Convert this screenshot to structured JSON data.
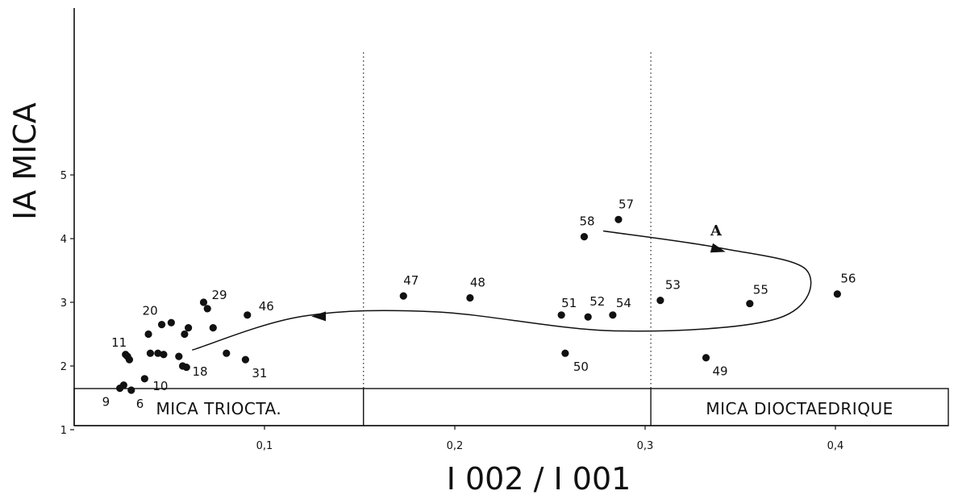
{
  "chart_data": {
    "type": "scatter",
    "xlabel": "I 002 / I 001",
    "ylabel": "IA MICA",
    "xlim": [
      0.0,
      0.46
    ],
    "ylim": [
      0.0,
      6.0
    ],
    "x_ticks": [
      {
        "value": 0.1,
        "label": "0,1"
      },
      {
        "value": 0.2,
        "label": "0,2"
      },
      {
        "value": 0.3,
        "label": "0,3"
      },
      {
        "value": 0.4,
        "label": "0,4"
      }
    ],
    "y_ticks": [
      {
        "value": 1,
        "label": "1"
      },
      {
        "value": 2,
        "label": "2"
      },
      {
        "value": 3,
        "label": "3"
      },
      {
        "value": 4,
        "label": "4"
      },
      {
        "value": 5,
        "label": "5"
      }
    ],
    "divider_lines": [
      0.152,
      0.303
    ],
    "bands": [
      {
        "label": "MICA TRIOCTA.",
        "from": 0.0,
        "to": 0.152
      },
      {
        "label": "",
        "from": 0.152,
        "to": 0.303
      },
      {
        "label": "MICA DIOCTAEDRIQUE",
        "from": 0.303,
        "to": 0.46
      }
    ],
    "points": [
      {
        "label": "9",
        "x": 0.024,
        "y": 1.65
      },
      {
        "label": "",
        "x": 0.026,
        "y": 1.7
      },
      {
        "label": "6",
        "x": 0.03,
        "y": 1.62
      },
      {
        "label": "10",
        "x": 0.037,
        "y": 1.8
      },
      {
        "label": "11",
        "x": 0.028,
        "y": 2.15
      },
      {
        "label": "",
        "x": 0.029,
        "y": 2.1
      },
      {
        "label": "",
        "x": 0.027,
        "y": 2.18
      },
      {
        "label": "",
        "x": 0.04,
        "y": 2.2
      },
      {
        "label": "",
        "x": 0.044,
        "y": 2.2
      },
      {
        "label": "",
        "x": 0.047,
        "y": 2.18
      },
      {
        "label": "",
        "x": 0.039,
        "y": 2.5
      },
      {
        "label": "20",
        "x": 0.046,
        "y": 2.65
      },
      {
        "label": "",
        "x": 0.051,
        "y": 2.68
      },
      {
        "label": "",
        "x": 0.055,
        "y": 2.15
      },
      {
        "label": "18",
        "x": 0.057,
        "y": 2.0
      },
      {
        "label": "",
        "x": 0.059,
        "y": 1.98
      },
      {
        "label": "",
        "x": 0.058,
        "y": 2.5
      },
      {
        "label": "",
        "x": 0.06,
        "y": 2.6
      },
      {
        "label": "29",
        "x": 0.068,
        "y": 3.0
      },
      {
        "label": "",
        "x": 0.07,
        "y": 2.9
      },
      {
        "label": "",
        "x": 0.073,
        "y": 2.6
      },
      {
        "label": "",
        "x": 0.08,
        "y": 2.2
      },
      {
        "label": "31",
        "x": 0.09,
        "y": 2.1
      },
      {
        "label": "46",
        "x": 0.091,
        "y": 2.8
      },
      {
        "label": "47",
        "x": 0.173,
        "y": 3.1
      },
      {
        "label": "48",
        "x": 0.208,
        "y": 3.07
      },
      {
        "label": "51",
        "x": 0.256,
        "y": 2.8
      },
      {
        "label": "50",
        "x": 0.258,
        "y": 2.2
      },
      {
        "label": "52",
        "x": 0.27,
        "y": 2.77
      },
      {
        "label": "54",
        "x": 0.283,
        "y": 2.8
      },
      {
        "label": "58",
        "x": 0.268,
        "y": 4.03
      },
      {
        "label": "57",
        "x": 0.286,
        "y": 4.3
      },
      {
        "label": "53",
        "x": 0.308,
        "y": 3.03
      },
      {
        "label": "49",
        "x": 0.332,
        "y": 2.13
      },
      {
        "label": "55",
        "x": 0.355,
        "y": 2.98
      },
      {
        "label": "56",
        "x": 0.401,
        "y": 3.13
      }
    ],
    "trend_arrow": {
      "label": "A",
      "path": [
        {
          "x": 0.278,
          "y": 4.12
        },
        {
          "x": 0.34,
          "y": 3.85
        },
        {
          "x": 0.385,
          "y": 3.5
        },
        {
          "x": 0.37,
          "y": 2.75
        },
        {
          "x": 0.285,
          "y": 2.55
        },
        {
          "x": 0.19,
          "y": 2.85
        },
        {
          "x": 0.12,
          "y": 2.78
        },
        {
          "x": 0.062,
          "y": 2.25
        }
      ]
    }
  }
}
